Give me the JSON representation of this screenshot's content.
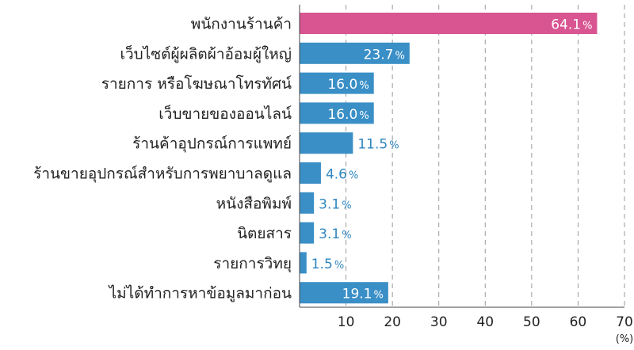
{
  "chart_data": {
    "type": "bar",
    "orientation": "horizontal",
    "categories": [
      "พนักงานร้านค้า",
      "เว็บไซต์ผู้ผลิตผ้าอ้อมผู้ใหญ่",
      "รายการ หรือโฆษณาโทรทัศน์",
      "เว็บขายของออนไลน์",
      "ร้านค้าอุปกรณ์การแพทย์",
      "ร้านขายอุปกรณ์สำหรับการพยาบาลดูแล",
      "หนังสือพิมพ์",
      "นิตยสาร",
      "รายการวิทยุ",
      "ไม่ได้ทำการหาข้อมูลมาก่อน"
    ],
    "values": [
      64.1,
      23.7,
      16.0,
      16.0,
      11.5,
      4.6,
      3.1,
      3.1,
      1.5,
      19.1
    ],
    "value_labels": [
      "64.1",
      "23.7",
      "16.0",
      "16.0",
      "11.5",
      "4.6",
      "3.1",
      "3.1",
      "1.5",
      "19.1"
    ],
    "value_suffix": "%",
    "highlight_index": 0,
    "xlim": [
      0,
      70
    ],
    "xticks": [
      10,
      20,
      30,
      40,
      50,
      60,
      70
    ],
    "xunit": "(%)",
    "grid": "vertical-dashed",
    "colors": {
      "bar": "#3a8fc6",
      "highlight": "#d95591",
      "label_outside": "#2f86c0",
      "label_inside": "#ffffff",
      "grid": "#9a9a9a",
      "axis": "#444444"
    }
  }
}
